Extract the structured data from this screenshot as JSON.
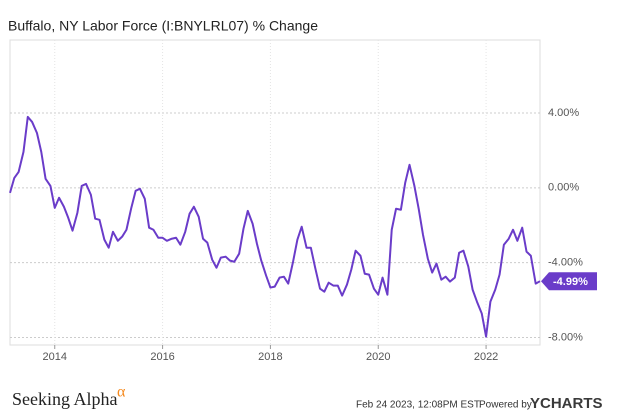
{
  "chart_data": {
    "type": "line",
    "title": "Buffalo, NY Labor Force (I:BNYLRL07) % Change",
    "color": "#6a3cc9",
    "x": [
      2013.17,
      2013.25,
      2013.33,
      2013.42,
      2013.5,
      2013.58,
      2013.67,
      2013.75,
      2013.83,
      2013.92,
      2014,
      2014.08,
      2014.17,
      2014.25,
      2014.33,
      2014.42,
      2014.5,
      2014.58,
      2014.67,
      2014.75,
      2014.83,
      2014.92,
      2015,
      2015.08,
      2015.17,
      2015.25,
      2015.33,
      2015.42,
      2015.5,
      2015.58,
      2015.67,
      2015.75,
      2015.83,
      2015.92,
      2016,
      2016.08,
      2016.17,
      2016.25,
      2016.33,
      2016.42,
      2016.5,
      2016.58,
      2016.67,
      2016.75,
      2016.83,
      2016.92,
      2017,
      2017.08,
      2017.17,
      2017.25,
      2017.33,
      2017.42,
      2017.5,
      2017.58,
      2017.67,
      2017.75,
      2017.83,
      2017.92,
      2018,
      2018.08,
      2018.17,
      2018.25,
      2018.33,
      2018.42,
      2018.5,
      2018.58,
      2018.67,
      2018.75,
      2018.83,
      2018.92,
      2019,
      2019.08,
      2019.17,
      2019.25,
      2019.33,
      2019.42,
      2019.5,
      2019.58,
      2019.67,
      2019.75,
      2019.83,
      2019.92,
      2020,
      2020.08,
      2020.17,
      2020.25,
      2020.33,
      2020.42,
      2020.5,
      2020.58,
      2020.67,
      2020.75,
      2020.83,
      2020.92,
      2021,
      2021.08,
      2021.17,
      2021.25,
      2021.33,
      2021.42,
      2021.5,
      2021.58,
      2021.67,
      2021.75,
      2021.83,
      2021.92,
      2022,
      2022.08,
      2022.17,
      2022.25,
      2022.33,
      2022.42,
      2022.5,
      2022.58,
      2022.67,
      2022.75,
      2022.83,
      2022.92,
      2023
    ],
    "values": [
      -0.27,
      0.53,
      0.85,
      1.92,
      3.79,
      3.52,
      2.93,
      1.92,
      0.48,
      0.1,
      -1.07,
      -0.53,
      -1.01,
      -1.6,
      -2.29,
      -1.33,
      0.1,
      0.21,
      -0.37,
      -1.65,
      -1.71,
      -2.77,
      -3.2,
      -2.35,
      -2.83,
      -2.61,
      -2.24,
      -1.07,
      -0.16,
      -0.05,
      -0.59,
      -2.13,
      -2.24,
      -2.67,
      -2.67,
      -2.83,
      -2.72,
      -2.67,
      -3.04,
      -2.35,
      -1.39,
      -1.01,
      -1.55,
      -2.72,
      -2.93,
      -3.84,
      -4.27,
      -3.73,
      -3.68,
      -3.89,
      -3.95,
      -3.52,
      -2.19,
      -1.23,
      -1.92,
      -2.99,
      -3.89,
      -4.69,
      -5.33,
      -5.28,
      -4.8,
      -4.75,
      -5.12,
      -3.95,
      -2.77,
      -2.08,
      -3.2,
      -3.2,
      -4.27,
      -5.39,
      -5.55,
      -5.07,
      -5.23,
      -5.23,
      -5.76,
      -5.17,
      -4.37,
      -3.36,
      -3.63,
      -4.59,
      -4.64,
      -5.39,
      -5.71,
      -4.8,
      -5.71,
      -2.24,
      -1.12,
      -1.17,
      0.27,
      1.23,
      0.11,
      -1.12,
      -2.51,
      -3.79,
      -4.53,
      -4.05,
      -4.91,
      -4.75,
      -5.01,
      -4.8,
      -3.47,
      -3.36,
      -4.21,
      -5.44,
      -6.08,
      -6.72,
      -7.95,
      -6.08,
      -5.44,
      -4.64,
      -3.04,
      -2.72,
      -2.24,
      -2.83,
      -2.13,
      -3.41,
      -3.63,
      -5.12,
      -4.99
    ],
    "xlim": [
      2013.17,
      2023
    ],
    "xticks": [
      2014,
      2016,
      2018,
      2020,
      2022
    ],
    "ylim": [
      -8.4,
      7.9
    ],
    "yticks": [
      {
        "value": 4,
        "label": "4.00%"
      },
      {
        "value": 0,
        "label": "0.00%"
      },
      {
        "value": -4,
        "label": "-4.00%"
      },
      {
        "value": -8,
        "label": "-8.00%"
      }
    ],
    "grid": true,
    "annotations": [
      {
        "value": -4.99,
        "label": "-4.99%"
      }
    ]
  },
  "footer": {
    "logo": "Seeking Alpha",
    "logo_symbol": "α",
    "date": "Feb 24 2023, 12:08PM EST.",
    "powered": "Powered by",
    "brand": "YCHARTS"
  }
}
